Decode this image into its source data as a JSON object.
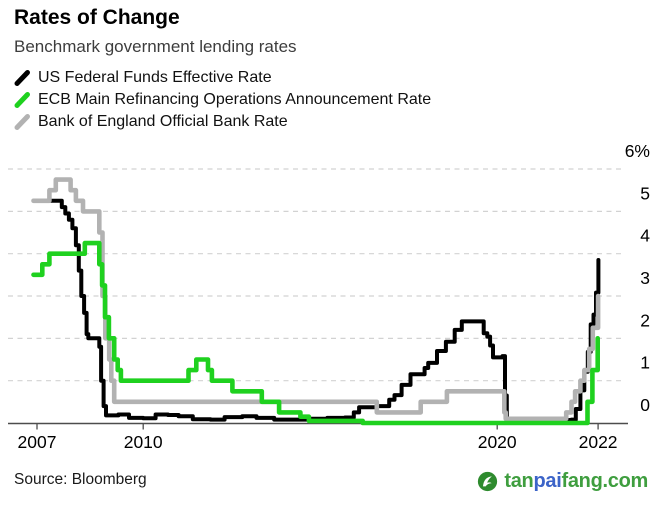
{
  "header": {
    "title": "Rates of Change",
    "subtitle": "Benchmark government lending rates"
  },
  "legend": [
    {
      "label": "US Federal Funds Effective Rate",
      "color": "#000000"
    },
    {
      "label": "ECB Main Refinancing Operations Announcement Rate",
      "color": "#1fd11f"
    },
    {
      "label": "Bank of England Official Bank Rate",
      "color": "#b2b2b2"
    }
  ],
  "footer": {
    "source": "Source: Bloomberg",
    "watermark": {
      "icon": "tanpaifang-leaf-icon",
      "icon_color": "#2e8b2e",
      "parts": [
        {
          "text": "tan",
          "color": "#3f9e3f"
        },
        {
          "text": "pai",
          "color": "#3c64c8"
        },
        {
          "text": "fang",
          "color": "#3f9e3f"
        },
        {
          "text": ".com",
          "color": "#3f9e3f"
        }
      ]
    }
  },
  "chart_data": {
    "type": "line",
    "title": "Rates of Change",
    "subtitle": "Benchmark government lending rates",
    "unit": "percent",
    "grid": "horizontal-dashed",
    "legend_position": "top-left",
    "y_axis_side": "right",
    "ylim": [
      0,
      6
    ],
    "x_range": [
      2006.9,
      2022.9
    ],
    "y_ticks": [
      {
        "label": "0",
        "value": 0
      },
      {
        "label": "1",
        "value": 1
      },
      {
        "label": "2",
        "value": 2
      },
      {
        "label": "3",
        "value": 3
      },
      {
        "label": "4",
        "value": 4
      },
      {
        "label": "5",
        "value": 5
      },
      {
        "label": "6%",
        "value": 6
      }
    ],
    "x_ticks": [
      {
        "label": "2007",
        "t": 2007
      },
      {
        "label": "2010",
        "t": 2010
      },
      {
        "label": "2020",
        "t": 2020
      },
      {
        "label": "2022",
        "t": 2022.85
      }
    ],
    "series": [
      {
        "name": "US Federal Funds Effective Rate",
        "color": "#000000",
        "width": 4,
        "step": true,
        "points": [
          [
            2006.9,
            5.25
          ],
          [
            2007.6,
            5.25
          ],
          [
            2007.7,
            5.1
          ],
          [
            2007.8,
            4.95
          ],
          [
            2007.9,
            4.8
          ],
          [
            2008.0,
            4.6
          ],
          [
            2008.1,
            4.2
          ],
          [
            2008.18,
            3.6
          ],
          [
            2008.25,
            3.0
          ],
          [
            2008.33,
            2.6
          ],
          [
            2008.4,
            2.1
          ],
          [
            2008.45,
            2.0
          ],
          [
            2008.7,
            2.0
          ],
          [
            2008.76,
            1.8
          ],
          [
            2008.81,
            1.0
          ],
          [
            2008.88,
            0.4
          ],
          [
            2008.95,
            0.18
          ],
          [
            2009.3,
            0.2
          ],
          [
            2009.6,
            0.12
          ],
          [
            2010.0,
            0.11
          ],
          [
            2010.35,
            0.2
          ],
          [
            2010.7,
            0.19
          ],
          [
            2011.0,
            0.16
          ],
          [
            2011.4,
            0.09
          ],
          [
            2011.9,
            0.08
          ],
          [
            2012.3,
            0.14
          ],
          [
            2012.8,
            0.16
          ],
          [
            2013.2,
            0.12
          ],
          [
            2013.7,
            0.08
          ],
          [
            2014.2,
            0.08
          ],
          [
            2014.7,
            0.1
          ],
          [
            2015.2,
            0.12
          ],
          [
            2015.7,
            0.13
          ],
          [
            2015.95,
            0.25
          ],
          [
            2016.1,
            0.37
          ],
          [
            2016.6,
            0.4
          ],
          [
            2016.95,
            0.55
          ],
          [
            2017.1,
            0.66
          ],
          [
            2017.3,
            0.9
          ],
          [
            2017.55,
            1.15
          ],
          [
            2017.95,
            1.3
          ],
          [
            2018.05,
            1.42
          ],
          [
            2018.3,
            1.7
          ],
          [
            2018.55,
            1.92
          ],
          [
            2018.8,
            2.2
          ],
          [
            2019.0,
            2.4
          ],
          [
            2019.55,
            2.4
          ],
          [
            2019.62,
            2.12
          ],
          [
            2019.72,
            2.04
          ],
          [
            2019.8,
            1.83
          ],
          [
            2019.88,
            1.55
          ],
          [
            2020.15,
            1.58
          ],
          [
            2020.22,
            0.65
          ],
          [
            2020.27,
            0.05
          ],
          [
            2020.8,
            0.09
          ],
          [
            2021.4,
            0.07
          ],
          [
            2022.1,
            0.08
          ],
          [
            2022.22,
            0.33
          ],
          [
            2022.35,
            0.77
          ],
          [
            2022.46,
            1.21
          ],
          [
            2022.56,
            1.68
          ],
          [
            2022.64,
            2.33
          ],
          [
            2022.72,
            2.56
          ],
          [
            2022.79,
            3.08
          ],
          [
            2022.86,
            3.85
          ]
        ]
      },
      {
        "name": "Bank of England Official Bank Rate",
        "color": "#b2b2b2",
        "width": 4.6,
        "step": true,
        "points": [
          [
            2006.9,
            5.25
          ],
          [
            2007.35,
            5.5
          ],
          [
            2007.53,
            5.75
          ],
          [
            2007.95,
            5.5
          ],
          [
            2008.1,
            5.25
          ],
          [
            2008.3,
            5.0
          ],
          [
            2008.76,
            4.5
          ],
          [
            2008.85,
            3.0
          ],
          [
            2008.93,
            2.0
          ],
          [
            2009.04,
            1.5
          ],
          [
            2009.1,
            1.0
          ],
          [
            2009.18,
            0.5
          ],
          [
            2016.6,
            0.25
          ],
          [
            2017.84,
            0.5
          ],
          [
            2018.58,
            0.75
          ],
          [
            2020.2,
            0.25
          ],
          [
            2020.24,
            0.1
          ],
          [
            2021.95,
            0.25
          ],
          [
            2022.1,
            0.5
          ],
          [
            2022.2,
            0.75
          ],
          [
            2022.35,
            1.0
          ],
          [
            2022.46,
            1.25
          ],
          [
            2022.6,
            1.75
          ],
          [
            2022.7,
            2.25
          ],
          [
            2022.85,
            3.0
          ]
        ]
      },
      {
        "name": "ECB Main Refinancing Operations Announcement Rate",
        "color": "#1fd11f",
        "width": 4.6,
        "step": true,
        "points": [
          [
            2006.9,
            3.5
          ],
          [
            2007.15,
            3.75
          ],
          [
            2007.35,
            4.0
          ],
          [
            2008.35,
            4.25
          ],
          [
            2008.76,
            3.75
          ],
          [
            2008.84,
            3.25
          ],
          [
            2008.92,
            2.5
          ],
          [
            2009.03,
            2.0
          ],
          [
            2009.18,
            1.5
          ],
          [
            2009.28,
            1.25
          ],
          [
            2009.37,
            1.0
          ],
          [
            2011.28,
            1.25
          ],
          [
            2011.5,
            1.5
          ],
          [
            2011.83,
            1.25
          ],
          [
            2011.94,
            1.0
          ],
          [
            2012.52,
            0.75
          ],
          [
            2013.35,
            0.5
          ],
          [
            2013.84,
            0.25
          ],
          [
            2014.44,
            0.15
          ],
          [
            2014.68,
            0.05
          ],
          [
            2016.2,
            0.0
          ],
          [
            2022.55,
            0.5
          ],
          [
            2022.69,
            1.25
          ],
          [
            2022.84,
            2.0
          ]
        ]
      }
    ]
  }
}
